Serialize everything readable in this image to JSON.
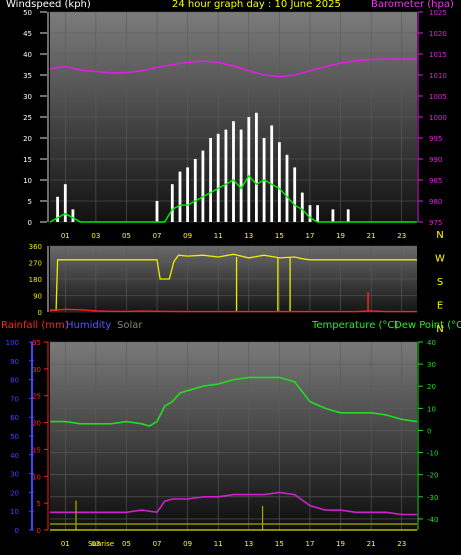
{
  "header": {
    "left": "Windspeed (kph)",
    "center": "24 hour graph day : 10 June 2025",
    "right": "Barometer (hpa)"
  },
  "bottom_header": {
    "rainfall": "Rainfall (mm)",
    "humidity": "Humidity",
    "solar": "Solar",
    "temperature": "Temperature (°C)",
    "dewpoint": "Dew Point (°C)"
  },
  "labels": {
    "sunrise": "Sunrise",
    "compass": [
      "N",
      "W",
      "S",
      "E",
      "N"
    ]
  },
  "colors": {
    "wind_gust": "#ffffff",
    "wind_avg": "#00ee00",
    "barometer": "#dd22dd",
    "direction": "#eeee00",
    "rain": "#ff2020",
    "humidity": "#4444ff",
    "solar": "#aaaa00",
    "temperature": "#22dd22",
    "dewpoint": "#cc22cc",
    "title": "#ffff00",
    "hour_label": "#ffff00"
  },
  "chart_data": [
    {
      "type": "line",
      "id": "wind_barometer",
      "xlabel": "",
      "x_ticks": [
        "01",
        "03",
        "05",
        "07",
        "09",
        "11",
        "13",
        "15",
        "17",
        "19",
        "21",
        "23"
      ],
      "x_range_hours": [
        0,
        24
      ],
      "ylabel": "Windspeed (kph)",
      "ylim": [
        0,
        50
      ],
      "y_ticks": [
        0,
        5,
        10,
        15,
        20,
        25,
        30,
        35,
        40,
        45,
        50
      ],
      "y2label": "Barometer (hpa)",
      "y2lim": [
        975,
        1025
      ],
      "y2_ticks": [
        975,
        980,
        985,
        990,
        995,
        1000,
        1005,
        1010,
        1015,
        1020,
        1025
      ],
      "series": [
        {
          "name": "Barometer",
          "axis": "right",
          "x": [
            0,
            1,
            2,
            3,
            4,
            5,
            6,
            7,
            8,
            9,
            10,
            11,
            12,
            13,
            14,
            15,
            16,
            17,
            18,
            19,
            20,
            21,
            22,
            23,
            24
          ],
          "values": [
            1011.5,
            1012,
            1011.2,
            1010.8,
            1010.5,
            1010.6,
            1011,
            1011.8,
            1012.5,
            1013,
            1013.3,
            1013,
            1012.2,
            1011,
            1010,
            1009.6,
            1010,
            1011,
            1012,
            1012.8,
            1013.4,
            1013.7,
            1013.8,
            1013.8,
            1013.8
          ]
        },
        {
          "name": "Gust",
          "axis": "left",
          "x": [
            0,
            0.5,
            1,
            1.5,
            2,
            3,
            4,
            5,
            6,
            7,
            7.5,
            8,
            8.5,
            9,
            9.5,
            10,
            10.5,
            11,
            11.5,
            12,
            12.5,
            13,
            13.5,
            14,
            14.5,
            15,
            15.5,
            16,
            16.5,
            17,
            17.5,
            18,
            18.5,
            19,
            19.5,
            20,
            21,
            22,
            23,
            24
          ],
          "values": [
            0,
            6,
            9,
            3,
            0,
            0,
            0,
            0,
            0,
            5,
            0,
            9,
            12,
            13,
            15,
            17,
            20,
            21,
            22,
            24,
            22,
            25,
            26,
            20,
            23,
            19,
            16,
            13,
            7,
            4,
            4,
            0,
            3,
            0,
            3,
            0,
            0,
            0,
            0,
            0
          ]
        },
        {
          "name": "Average",
          "axis": "left",
          "x": [
            0,
            1,
            2,
            3,
            4,
            5,
            6,
            7,
            7.5,
            8,
            8.5,
            9,
            9.5,
            10,
            10.5,
            11,
            11.5,
            12,
            12.5,
            13,
            13.5,
            14,
            14.5,
            15,
            15.5,
            16,
            16.5,
            17,
            17.5,
            18,
            19,
            20,
            21,
            22,
            23,
            24
          ],
          "values": [
            0,
            2,
            0,
            0,
            0,
            0,
            0,
            0,
            0,
            3,
            4,
            4,
            5,
            6,
            7,
            8,
            9,
            10,
            8,
            11,
            9,
            10,
            9,
            8,
            6,
            4,
            3,
            1,
            0,
            0,
            0,
            0,
            0,
            0,
            0,
            0
          ]
        }
      ]
    },
    {
      "type": "line",
      "id": "wind_direction",
      "x_range_hours": [
        0,
        24
      ],
      "ylabel": "",
      "ylim": [
        0,
        360
      ],
      "y_ticks": [
        0,
        90,
        180,
        270,
        360
      ],
      "y_tick_labels": [
        "0",
        "90",
        "180",
        "270",
        "360"
      ],
      "series": [
        {
          "name": "Direction",
          "x": [
            0,
            0.4,
            0.5,
            7,
            7.2,
            7.8,
            8.1,
            8.4,
            9,
            10,
            11,
            12,
            13,
            14,
            15,
            16,
            16.5,
            17,
            24
          ],
          "values": [
            10,
            10,
            285,
            285,
            180,
            180,
            275,
            310,
            305,
            310,
            300,
            315,
            295,
            310,
            295,
            300,
            290,
            285,
            285
          ]
        },
        {
          "name": "Direction spikes",
          "x": [
            12.2,
            14.9,
            15.7
          ],
          "values": [
            5,
            5,
            5
          ]
        },
        {
          "name": "Rain trace",
          "x": [
            0,
            1,
            2,
            3,
            4,
            5,
            6,
            7,
            8,
            9,
            10,
            11,
            12,
            13,
            14,
            15,
            16,
            17,
            18,
            19,
            20,
            21,
            22,
            23,
            24
          ],
          "values": [
            8,
            15,
            12,
            6,
            4,
            3,
            5,
            4,
            3,
            2,
            2,
            2,
            2,
            2,
            2,
            2,
            2,
            2,
            2,
            2,
            2,
            6,
            2,
            2,
            2
          ]
        }
      ]
    },
    {
      "type": "line",
      "id": "temp_humidity",
      "x_ticks": [
        "01",
        "03",
        "05",
        "07",
        "09",
        "11",
        "13",
        "15",
        "17",
        "19",
        "21",
        "23"
      ],
      "x_range_hours": [
        0,
        24
      ],
      "y_humidity_lim": [
        0,
        100
      ],
      "y_humidity_ticks": [
        0,
        10,
        20,
        30,
        40,
        50,
        60,
        70,
        80,
        90,
        100
      ],
      "y_rain_lim": [
        0,
        35
      ],
      "y_rain_ticks": [
        0,
        5,
        10,
        15,
        20,
        25,
        30,
        35
      ],
      "y_temp_lim": [
        -45,
        40
      ],
      "y_temp_ticks": [
        -40,
        -30,
        -20,
        -10,
        0,
        10,
        20,
        30,
        40
      ],
      "series": [
        {
          "name": "Temperature",
          "axis": "temp",
          "x": [
            0,
            1,
            2,
            3,
            4,
            5,
            6,
            6.5,
            7,
            7.5,
            8,
            8.5,
            9,
            10,
            11,
            12,
            13,
            14,
            15,
            16,
            17,
            18,
            19,
            20,
            21,
            22,
            23,
            24
          ],
          "values": [
            4,
            4,
            3,
            3,
            3,
            4,
            3,
            2,
            4,
            11,
            13,
            17,
            18,
            20,
            21,
            23,
            24,
            24,
            24,
            22,
            13,
            10,
            8,
            8,
            8,
            7,
            5,
            4
          ]
        },
        {
          "name": "Dew Point",
          "axis": "temp",
          "x": [
            0,
            1,
            2,
            3,
            4,
            5,
            6,
            7,
            7.5,
            8,
            9,
            10,
            11,
            12,
            13,
            14,
            15,
            16,
            17,
            18,
            19,
            20,
            21,
            22,
            23,
            24
          ],
          "values": [
            -37,
            -37,
            -37,
            -37,
            -37,
            -37,
            -36,
            -37,
            -32,
            -31,
            -31,
            -30,
            -30,
            -29,
            -29,
            -29,
            -28,
            -29,
            -34,
            -36,
            -36,
            -37,
            -37,
            -37,
            -38,
            -38
          ]
        },
        {
          "name": "Solar",
          "axis": "rain",
          "x": [
            1.7,
            13.9
          ],
          "values": [
            4,
            3
          ]
        }
      ]
    }
  ]
}
